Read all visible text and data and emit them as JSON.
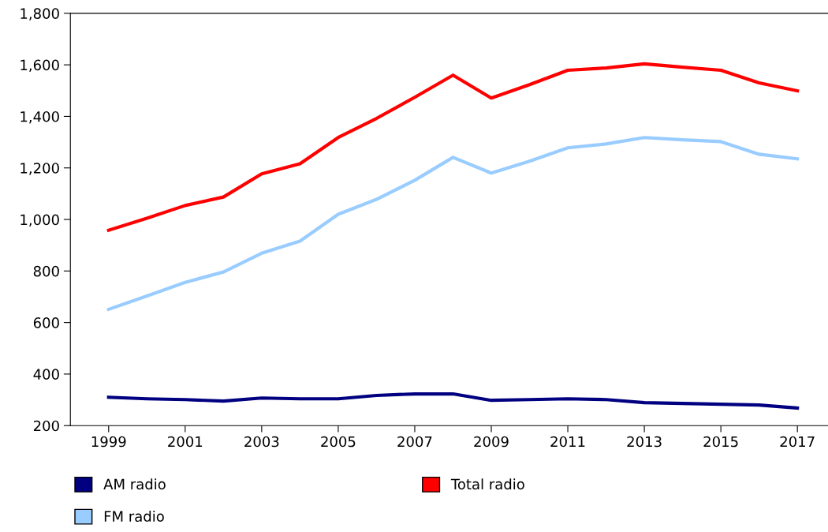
{
  "chart_data": {
    "type": "line",
    "x": [
      1999,
      2000,
      2001,
      2002,
      2003,
      2004,
      2005,
      2006,
      2007,
      2008,
      2009,
      2010,
      2011,
      2012,
      2013,
      2014,
      2015,
      2016,
      2017
    ],
    "series": [
      {
        "name": "AM radio",
        "color": "#000080",
        "values": [
          310,
          304,
          301,
          295,
          307,
          304,
          304,
          317,
          323,
          323,
          298,
          301,
          304,
          301,
          289,
          286,
          283,
          280,
          268
        ]
      },
      {
        "name": "FM radio",
        "color": "#99ccff",
        "values": [
          651,
          703,
          756,
          796,
          869,
          916,
          1020,
          1078,
          1152,
          1241,
          1180,
          1226,
          1278,
          1293,
          1318,
          1309,
          1302,
          1253,
          1235
        ]
      },
      {
        "name": "Total radio",
        "color": "#ff0000",
        "values": [
          958,
          1005,
          1054,
          1087,
          1177,
          1216,
          1318,
          1392,
          1474,
          1560,
          1471,
          1523,
          1579,
          1588,
          1604,
          1591,
          1579,
          1530,
          1499
        ]
      }
    ],
    "xlim": [
      1998,
      2017.8
    ],
    "xticks": [
      1999,
      2001,
      2003,
      2005,
      2007,
      2009,
      2011,
      2013,
      2015,
      2017
    ],
    "ylim": [
      200,
      1800
    ],
    "yticks": [
      {
        "value": 200,
        "label": "200"
      },
      {
        "value": 400,
        "label": "400"
      },
      {
        "value": 600,
        "label": "600"
      },
      {
        "value": 800,
        "label": "800"
      },
      {
        "value": 1000,
        "label": "1,000"
      },
      {
        "value": 1200,
        "label": "1,200"
      },
      {
        "value": 1400,
        "label": "1,400"
      },
      {
        "value": 1600,
        "label": "1,600"
      },
      {
        "value": 1800,
        "label": "1,800"
      }
    ],
    "grid": false,
    "legend": "bottom",
    "marker": "none",
    "line_style": "solid"
  }
}
